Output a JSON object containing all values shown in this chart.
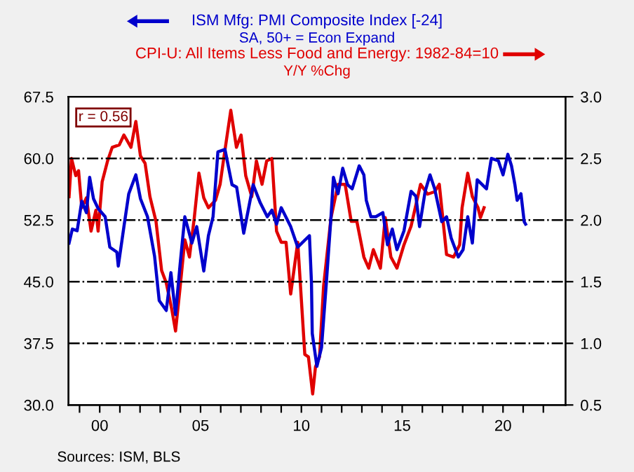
{
  "chart_data": {
    "type": "line",
    "annotations": [
      "SA, 50+ = Econ Expand",
      "Y/Y %Chg",
      "r = 0.56",
      "Sources: ISM, BLS"
    ],
    "series": [
      {
        "name": "ISM Mfg: PMI Composite Index [-24]",
        "color": "#0000cc",
        "x": [
          1998.48,
          1998.64,
          1998.88,
          1999.11,
          1999.34,
          1999.5,
          1999.69,
          1999.92,
          2000.27,
          2000.5,
          2000.85,
          2000.92,
          2001.2,
          2001.44,
          2001.79,
          2002.02,
          2002.37,
          2002.72,
          2002.95,
          2003.3,
          2003.53,
          2003.76,
          2003.99,
          2004.22,
          2004.57,
          2004.81,
          2005.16,
          2005.39,
          2005.62,
          2005.86,
          2006.21,
          2006.56,
          2006.79,
          2007.14,
          2007.61,
          2007.96,
          2008.31,
          2008.54,
          2008.77,
          2009.0,
          2009.47,
          2009.82,
          2010.4,
          2010.5,
          2010.54,
          2010.77,
          2011.0,
          2011.24,
          2011.47,
          2011.59,
          2011.82,
          2012.05,
          2012.29,
          2012.52,
          2012.87,
          2013.1,
          2013.22,
          2013.45,
          2013.69,
          2014.04,
          2014.27,
          2014.51,
          2014.74,
          2015.09,
          2015.44,
          2015.68,
          2015.86,
          2016.14,
          2016.38,
          2016.61,
          2016.96,
          2017.2,
          2017.43,
          2017.78,
          2018.02,
          2018.25,
          2018.48,
          2018.72,
          2019.18,
          2019.42,
          2019.77,
          2020.0,
          2020.24,
          2020.42,
          2020.59,
          2020.7,
          2020.89,
          2021.05,
          2021.12
        ],
        "values": [
          49.7,
          51.4,
          51.2,
          54.8,
          53.4,
          57.7,
          55.1,
          53.9,
          52.9,
          49.2,
          48.6,
          46.9,
          51.7,
          55.7,
          58.0,
          55.1,
          52.9,
          48.1,
          42.7,
          41.5,
          46.1,
          41.0,
          47.2,
          52.9,
          49.7,
          51.7,
          46.3,
          50.6,
          52.9,
          60.8,
          61.1,
          56.8,
          56.5,
          50.9,
          56.8,
          54.6,
          52.9,
          53.7,
          52.0,
          54.0,
          51.7,
          49.2,
          50.6,
          44.9,
          38.7,
          34.7,
          37.0,
          44.9,
          52.9,
          57.7,
          55.7,
          58.8,
          56.8,
          56.3,
          59.1,
          58.0,
          54.9,
          52.9,
          52.9,
          53.4,
          49.5,
          51.4,
          48.9,
          51.2,
          56.0,
          55.4,
          51.7,
          56.0,
          58.0,
          56.3,
          52.3,
          52.9,
          50.3,
          48.0,
          48.9,
          52.9,
          49.7,
          57.4,
          56.3,
          60.0,
          59.7,
          58.0,
          60.5,
          59.1,
          56.8,
          54.9,
          55.7,
          52.3,
          52.0
        ]
      },
      {
        "name": "CPI-U: All Items Less Food and Energy: 1982-84=10",
        "color": "#e00000",
        "axis": "y2",
        "x": [
          1998.48,
          1998.6,
          1998.81,
          1998.95,
          1999.11,
          1999.34,
          1999.57,
          1999.81,
          1999.92,
          2000.12,
          2000.39,
          2000.62,
          2000.97,
          2001.2,
          2001.55,
          2001.79,
          2002.02,
          2002.25,
          2002.49,
          2002.79,
          2003.07,
          2003.3,
          2003.58,
          2003.76,
          2003.99,
          2004.22,
          2004.45,
          2004.69,
          2004.92,
          2005.16,
          2005.39,
          2005.74,
          2005.97,
          2006.15,
          2006.5,
          2006.78,
          2007.01,
          2007.24,
          2007.54,
          2007.77,
          2008.05,
          2008.28,
          2008.54,
          2008.77,
          2009.0,
          2009.24,
          2009.47,
          2009.82,
          2010.17,
          2010.35,
          2010.56,
          2010.7,
          2010.9,
          2011.1,
          2011.47,
          2011.82,
          2012.17,
          2012.47,
          2012.75,
          2013.1,
          2013.34,
          2013.57,
          2013.92,
          2014.16,
          2014.44,
          2014.74,
          2015.09,
          2015.44,
          2015.91,
          2016.26,
          2016.61,
          2016.84,
          2017.2,
          2017.55,
          2017.85,
          2017.97,
          2018.25,
          2018.48,
          2018.76,
          2018.88,
          2019.06
        ],
        "values": [
          2.19,
          2.5,
          2.36,
          2.4,
          2.1,
          2.18,
          1.91,
          2.08,
          1.91,
          2.31,
          2.48,
          2.59,
          2.61,
          2.69,
          2.59,
          2.8,
          2.52,
          2.46,
          2.19,
          1.99,
          1.59,
          1.49,
          1.27,
          1.1,
          1.46,
          1.84,
          1.7,
          2.02,
          2.38,
          2.18,
          2.1,
          2.16,
          2.29,
          2.5,
          2.89,
          2.59,
          2.69,
          2.36,
          2.19,
          2.48,
          2.29,
          2.48,
          2.5,
          1.91,
          1.82,
          1.82,
          1.4,
          1.82,
          0.91,
          0.89,
          0.59,
          0.81,
          0.89,
          1.46,
          2.02,
          2.29,
          2.29,
          1.99,
          1.99,
          1.7,
          1.61,
          1.76,
          1.61,
          2.02,
          1.7,
          1.61,
          1.8,
          1.95,
          2.29,
          2.21,
          2.23,
          2.29,
          1.72,
          1.7,
          1.8,
          2.1,
          2.38,
          2.19,
          2.1,
          2.02,
          2.1
        ]
      }
    ],
    "xlim": [
      1998.45,
      2023.1
    ],
    "xticks": [
      {
        "value": 1999,
        "label": null
      },
      {
        "value": 2000,
        "label": "00"
      },
      {
        "value": 2001,
        "label": null
      },
      {
        "value": 2002,
        "label": null
      },
      {
        "value": 2003,
        "label": null
      },
      {
        "value": 2004,
        "label": null
      },
      {
        "value": 2005,
        "label": "05"
      },
      {
        "value": 2006,
        "label": null
      },
      {
        "value": 2007,
        "label": null
      },
      {
        "value": 2008,
        "label": null
      },
      {
        "value": 2009,
        "label": null
      },
      {
        "value": 2010,
        "label": "10"
      },
      {
        "value": 2011,
        "label": null
      },
      {
        "value": 2012,
        "label": null
      },
      {
        "value": 2013,
        "label": null
      },
      {
        "value": 2014,
        "label": null
      },
      {
        "value": 2015,
        "label": "15"
      },
      {
        "value": 2016,
        "label": null
      },
      {
        "value": 2017,
        "label": null
      },
      {
        "value": 2018,
        "label": null
      },
      {
        "value": 2019,
        "label": null
      },
      {
        "value": 2020,
        "label": "20"
      },
      {
        "value": 2021,
        "label": null
      },
      {
        "value": 2022,
        "label": null
      }
    ],
    "ylim": [
      30.0,
      67.5
    ],
    "yticks": [
      {
        "value": 30,
        "label": "30.0"
      },
      {
        "value": 37.5,
        "label": "37.5"
      },
      {
        "value": 45,
        "label": "45.0"
      },
      {
        "value": 52.5,
        "label": "52.5"
      },
      {
        "value": 60,
        "label": "60.0"
      },
      {
        "value": 67.5,
        "label": "67.5"
      }
    ],
    "y2lim": [
      0.5,
      3.0
    ],
    "y2ticks": [
      {
        "value": 0.5,
        "label": "0.5"
      },
      {
        "value": 1.0,
        "label": "1.0"
      },
      {
        "value": 1.5,
        "label": "1.5"
      },
      {
        "value": 2.0,
        "label": "2.0"
      },
      {
        "value": 2.5,
        "label": "2.5"
      },
      {
        "value": 3.0,
        "label": "3.0"
      }
    ],
    "grid": "y",
    "line_style": "solid",
    "marker": "none"
  }
}
